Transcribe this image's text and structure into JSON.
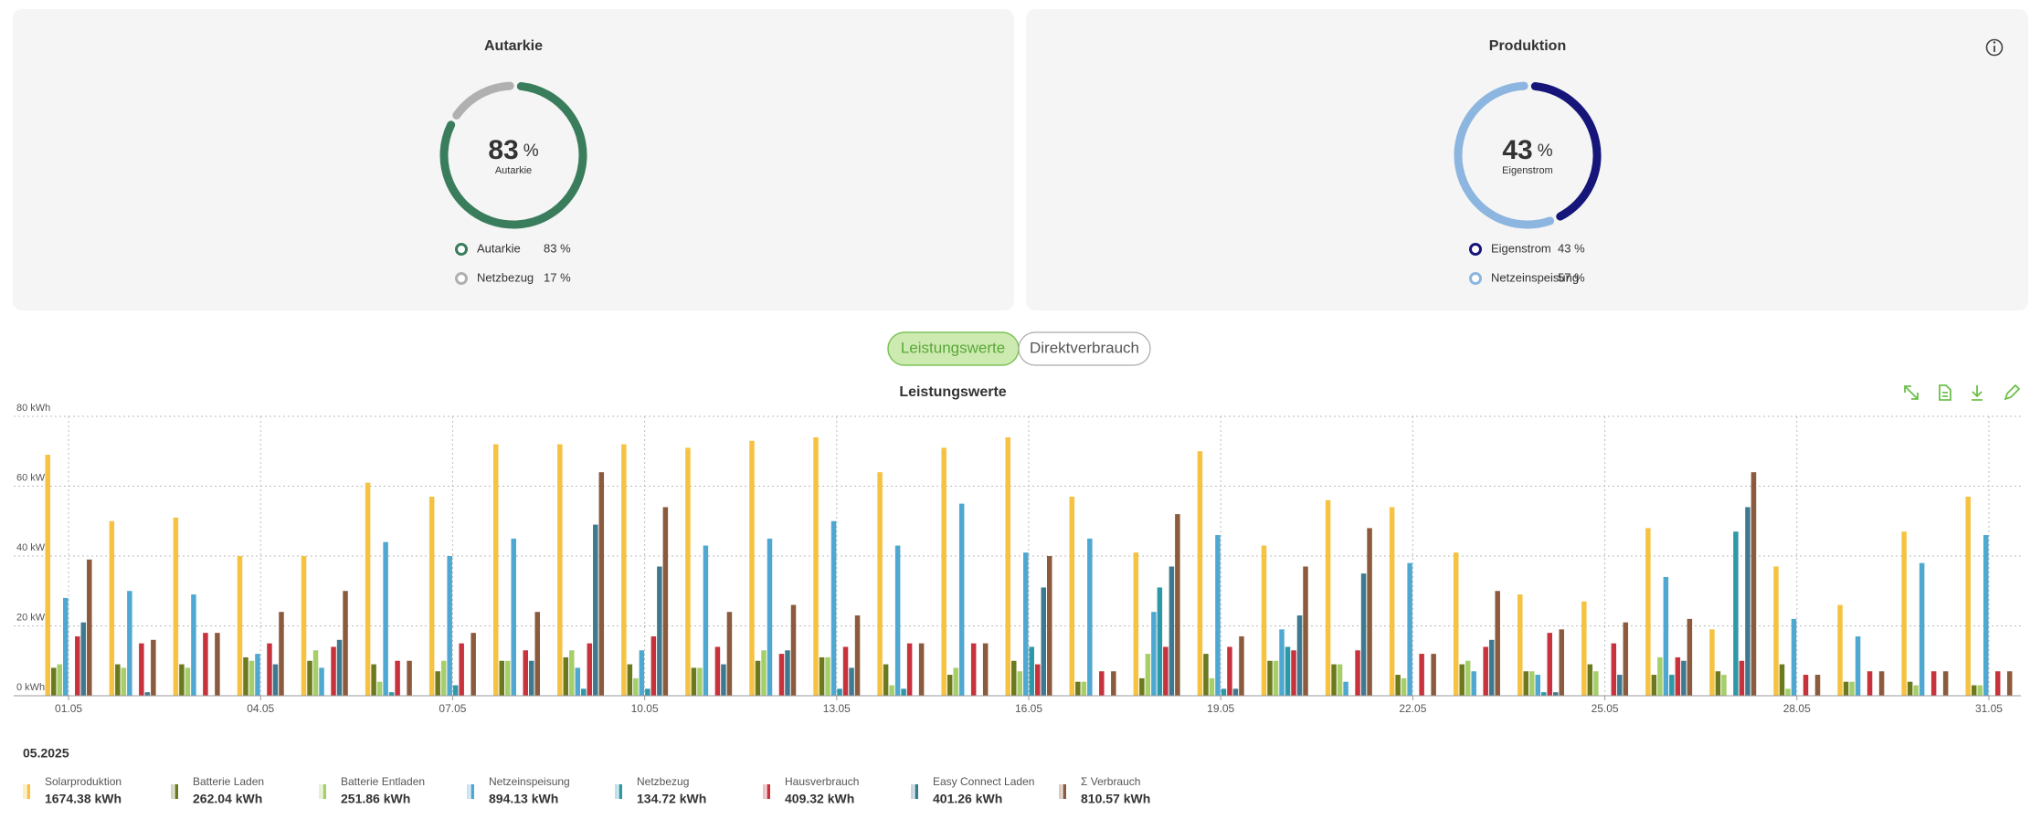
{
  "toggle": [
    "Leistungswerte",
    "Direktverbrauch"
  ],
  "legend_header": "05.2025",
  "chart_data": [
    {
      "type": "pie",
      "title": "Autarkie",
      "categories": [
        "Autarkie",
        "Netzbezug"
      ],
      "values": [
        83,
        17
      ],
      "value_labels": [
        "83 %",
        "17 %"
      ],
      "colors": [
        "#3a7d5c",
        "#b0b0b0"
      ],
      "unit": "%"
    },
    {
      "type": "pie",
      "title": "Produktion",
      "categories": [
        "Eigenstrom",
        "Netzeinspeisung"
      ],
      "values": [
        43,
        57
      ],
      "value_labels": [
        "43 %",
        "57 %"
      ],
      "colors": [
        "#16167a",
        "#8cb6e0"
      ],
      "unit": "%"
    },
    {
      "type": "bar",
      "title": "Leistungswerte",
      "categories": [
        "01.05",
        null,
        null,
        "04.05",
        null,
        null,
        "07.05",
        null,
        null,
        "10.05",
        null,
        null,
        "13.05",
        null,
        null,
        "16.05",
        null,
        null,
        "19.05",
        null,
        null,
        "22.05",
        null,
        null,
        "25.05",
        null,
        null,
        "28.05",
        null,
        null,
        "31.05"
      ],
      "ylim": [
        0,
        80
      ],
      "yticks": [
        {
          "value": 0,
          "label": "0 kWh"
        },
        {
          "value": 20,
          "label": "20 kWh"
        },
        {
          "value": 40,
          "label": "40 kWh"
        },
        {
          "value": 60,
          "label": "60 kWh"
        },
        {
          "value": 80,
          "label": "80 kWh"
        }
      ],
      "grid": true,
      "series": [
        {
          "name": "Solarproduktion",
          "total_label": "1674.38 kWh",
          "color": "#f5c242",
          "values": [
            69,
            50,
            51,
            40,
            40,
            61,
            57,
            72,
            72,
            72,
            71,
            73,
            74,
            64,
            71,
            74,
            57,
            41,
            70,
            43,
            56,
            54,
            41,
            29,
            27,
            48,
            19,
            37,
            26,
            47,
            57
          ]
        },
        {
          "name": "Batterie Laden",
          "total_label": "262.04 kWh",
          "color": "#6b7a1f",
          "values": [
            8,
            9,
            9,
            11,
            10,
            9,
            7,
            10,
            11,
            9,
            8,
            10,
            11,
            9,
            6,
            10,
            4,
            5,
            12,
            10,
            9,
            6,
            9,
            7,
            9,
            6,
            7,
            9,
            4,
            4,
            3
          ]
        },
        {
          "name": "Batterie Entladen",
          "total_label": "251.86 kWh",
          "color": "#a6cf6a",
          "values": [
            9,
            8,
            8,
            10,
            13,
            4,
            10,
            10,
            13,
            5,
            8,
            13,
            11,
            3,
            8,
            7,
            4,
            12,
            5,
            10,
            9,
            5,
            10,
            7,
            7,
            11,
            6,
            2,
            4,
            3,
            3
          ]
        },
        {
          "name": "Netzeinspeisung",
          "total_label": "894.13 kWh",
          "color": "#4ea8d2",
          "values": [
            28,
            30,
            29,
            12,
            8,
            44,
            40,
            45,
            8,
            13,
            43,
            45,
            50,
            43,
            55,
            41,
            45,
            24,
            46,
            19,
            4,
            38,
            7,
            6,
            0,
            34,
            0,
            22,
            17,
            38,
            46
          ]
        },
        {
          "name": "Netzbezug",
          "total_label": "134.72 kWh",
          "color": "#2f98a6",
          "values": [
            0,
            0,
            0,
            0,
            0,
            1,
            3,
            0,
            2,
            2,
            0,
            0,
            2,
            2,
            0,
            14,
            0,
            31,
            2,
            14,
            0,
            0,
            0,
            1,
            0,
            6,
            47,
            0,
            0,
            0,
            0
          ]
        },
        {
          "name": "Hausverbrauch",
          "total_label": "409.32 kWh",
          "color": "#c8323c",
          "values": [
            17,
            15,
            18,
            15,
            14,
            10,
            15,
            13,
            15,
            17,
            14,
            12,
            14,
            15,
            15,
            9,
            7,
            14,
            14,
            13,
            13,
            12,
            14,
            18,
            15,
            11,
            10,
            6,
            7,
            7,
            7
          ]
        },
        {
          "name": "Easy Connect Laden",
          "total_label": "401.26 kWh",
          "color": "#3e7a8f",
          "values": [
            21,
            1,
            0,
            9,
            16,
            0,
            0,
            10,
            49,
            37,
            9,
            13,
            8,
            0,
            0,
            31,
            0,
            37,
            2,
            23,
            35,
            0,
            16,
            1,
            6,
            10,
            54,
            0,
            0,
            0,
            0
          ]
        },
        {
          "name": "Σ Verbrauch",
          "total_label": "810.57 kWh",
          "color": "#8c5a3c",
          "values": [
            39,
            16,
            18,
            24,
            30,
            10,
            18,
            24,
            64,
            54,
            24,
            26,
            23,
            15,
            15,
            40,
            7,
            52,
            17,
            37,
            48,
            12,
            30,
            19,
            21,
            22,
            64,
            6,
            7,
            7,
            7
          ]
        }
      ]
    }
  ]
}
